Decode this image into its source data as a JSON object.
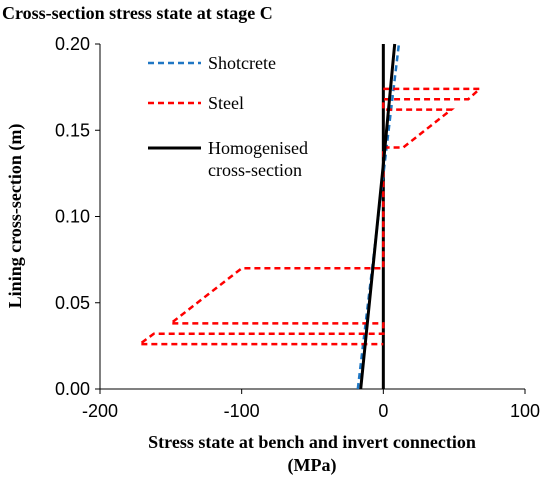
{
  "chart_data": {
    "type": "line",
    "title": "Cross-section stress state at stage C",
    "xlabel_line1": "Stress state at bench and invert connection",
    "xlabel_line2": "(MPa)",
    "ylabel": "Lining cross-section (m)",
    "xlim": [
      -200,
      100
    ],
    "ylim": [
      0.0,
      0.2
    ],
    "xticks": [
      -200,
      -100,
      0,
      100
    ],
    "xtick_labels": [
      "-200",
      "-100",
      "0",
      "100"
    ],
    "yticks": [
      0.0,
      0.05,
      0.1,
      0.15,
      0.2
    ],
    "ytick_labels": [
      "0.00",
      "0.05",
      "0.10",
      "0.15",
      "0.20"
    ],
    "grid": false,
    "legend_position": "top-left",
    "series": [
      {
        "name": "Shotcrete",
        "color": "#1f77c4",
        "style": "dashed",
        "points": [
          [
            -18,
            0.0
          ],
          [
            11,
            0.2
          ]
        ]
      },
      {
        "name": "Steel",
        "color": "#ff0000",
        "style": "dashed",
        "points": [
          [
            0,
            0.174
          ],
          [
            68,
            0.174
          ],
          [
            60,
            0.168
          ],
          [
            0,
            0.168
          ],
          [
            0,
            0.162
          ],
          [
            48,
            0.162
          ],
          [
            14,
            0.14
          ],
          [
            0,
            0.14
          ],
          [
            0,
            0.07
          ],
          [
            -100,
            0.07
          ],
          [
            -150,
            0.038
          ],
          [
            0,
            0.038
          ],
          [
            0,
            0.032
          ],
          [
            -162,
            0.032
          ],
          [
            -172,
            0.026
          ],
          [
            0,
            0.026
          ]
        ]
      },
      {
        "name": "Homogenised cross-section",
        "legend_line1": "Homogenised",
        "legend_line2": "cross-section",
        "color": "#000000",
        "style": "solid",
        "points": [
          [
            -16,
            0.0
          ],
          [
            0,
            0.13
          ],
          [
            8,
            0.2
          ]
        ]
      }
    ],
    "vertical_line": {
      "x": 0,
      "color": "#000000",
      "from": 0.0,
      "to": 0.2
    }
  }
}
